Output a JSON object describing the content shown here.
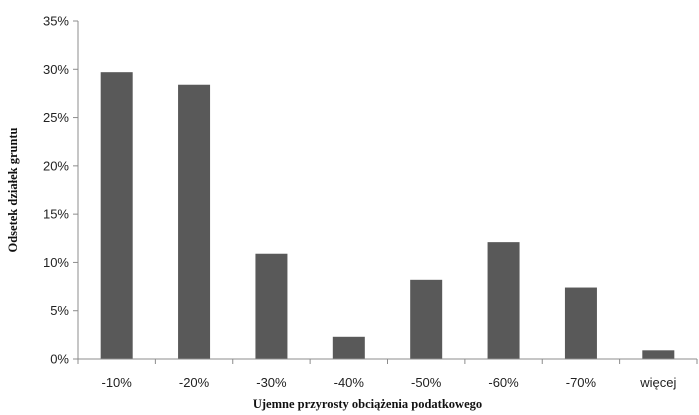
{
  "chart_data": {
    "type": "bar",
    "title": "",
    "xlabel": "Ujemne przyrosty obciążenia podatkowego",
    "ylabel": "Odsetek działek gruntu",
    "categories": [
      "-10%",
      "-20%",
      "-30%",
      "-40%",
      "-50%",
      "-60%",
      "-70%",
      "więcej"
    ],
    "values": [
      29.7,
      28.4,
      10.9,
      2.3,
      8.2,
      12.1,
      7.4,
      0.9
    ],
    "ylim": [
      0,
      35
    ],
    "yticks": [
      0,
      5,
      10,
      15,
      20,
      25,
      30,
      35
    ],
    "ytick_labels": [
      "0%",
      "5%",
      "10%",
      "15%",
      "20%",
      "25%",
      "30%",
      "35%"
    ],
    "grid": false,
    "legend": "none",
    "bar_color": "#595959",
    "axis_color": "#8c8c8c"
  }
}
